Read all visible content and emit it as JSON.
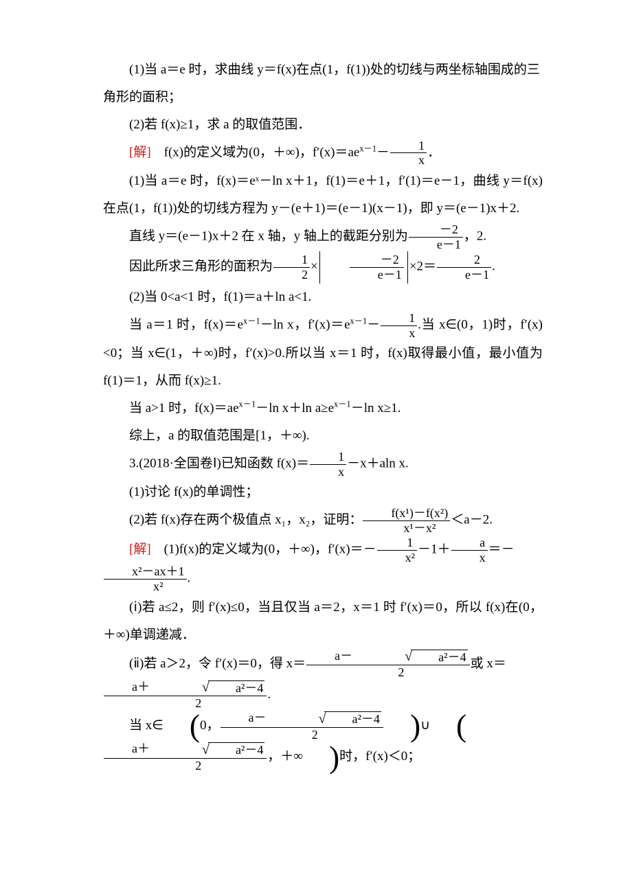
{
  "colors": {
    "text": "#000000",
    "accent": "#d41a1a",
    "background": "#ffffff"
  },
  "font": {
    "family": "SimSun / Songti",
    "size_pt": 14
  },
  "t": {
    "p1": "(1)当 a＝e 时，求曲线 y＝f(x)在点(1，f(1))处的切线与两坐标轴围成的三角形的面积；",
    "p2": "(2)若 f(x)≥1，求 a 的取值范围．",
    "p3a": "[解]",
    "p3b": "　f(x)的定义域为(0，＋∞)，f′(x)＝ae",
    "p3c": "x－1",
    "p3d": "－",
    "p3e": "1",
    "p3f": "x",
    "p3g": "．",
    "p4": "(1)当 a＝e 时，f(x)＝eˣ－ln x＋1，f(1)＝e＋1，f′(1)＝e－1，曲线 y＝f(x)在点(1，f(1))处的切线方程为 y－(e＋1)＝(e－1)(x－1)，即 y＝(e－1)x＋2.",
    "p5a": "直线 y＝(e－1)x＋2 在 x 轴，y 轴上的截距分别为",
    "p5b": "－2",
    "p5c": "e－1",
    "p5d": "，2.",
    "p6a": "因此所求三角形的面积为",
    "p6b": "1",
    "p6c": "2",
    "p6d": "×",
    "p6e": "－2",
    "p6f": "e－1",
    "p6g": "×2＝",
    "p6h": "2",
    "p6i": "e－1",
    "p6j": ".",
    "p7": "(2)当 0<a<1 时，f(1)＝a＋ln a<1.",
    "p8a": "当 a＝1 时，f(x)＝e",
    "p8b": "x－1",
    "p8c": "－ln x，f′(x)＝e",
    "p8d": "－",
    "p8e": "1",
    "p8f": "x",
    "p8g": ".当 x∈(0，1)时，f′(x)<0；当 x∈(1，＋∞)时，f′(x)>0.所以当 x＝1 时，f(x)取得最小值，最小值为 f(1)＝1，从而 f(x)≥1.",
    "p9a": "当 a>1 时，f(x)＝ae",
    "p9b": "x－1",
    "p9c": "－ln x＋ln a≥e",
    "p9d": "－ln x≥1.",
    "p10": "综上，a 的取值范围是[1，＋∞).",
    "p11a": "3.(2018·全国卷Ⅰ)已知函数 f(x)＝",
    "p11b": "1",
    "p11c": "x",
    "p11d": "－x＋aln x.",
    "p12": "(1)讨论 f(x)的单调性；",
    "p13a": "(2)若 f(x)存在两个极值点 x₁，x₂，证明：",
    "p13b": "f(x¹)－f(x²)",
    "p13c": "x¹－x²",
    "p13d": "＜a－2.",
    "p14a": "[解]",
    "p14b": "　(1)f(x)的定义域为(0，＋∞)，f′(x)＝－",
    "p14c": "1",
    "p14d": "x²",
    "p14e": "－1＋",
    "p14f": "a",
    "p14g": "x",
    "p14h": "＝－",
    "p14i": "x²－ax＋1",
    "p14j": "x²",
    "p14k": ".",
    "p15": "(ⅰ)若 a≤2，则 f′(x)≤0，当且仅当 a＝2，x＝1 时 f′(x)＝0，所以 f(x)在(0，＋∞)单调递减．",
    "p16a": "(ⅱ)若 a＞2，令 f′(x)＝0，得 x＝",
    "p16b": "a－",
    "p16c": "a²－4",
    "p16d": "2",
    "p16e": "或 x＝",
    "p16f": "a＋",
    "p16g": ".",
    "p17a": "当 x∈",
    "p17b": "0，",
    "p17c": "a－",
    "p17d": "a²－4",
    "p17e": "2",
    "p17f": "∪",
    "p17g": "a＋",
    "p17h": "，＋∞",
    "p17i": "时，f′(x)＜0；"
  }
}
